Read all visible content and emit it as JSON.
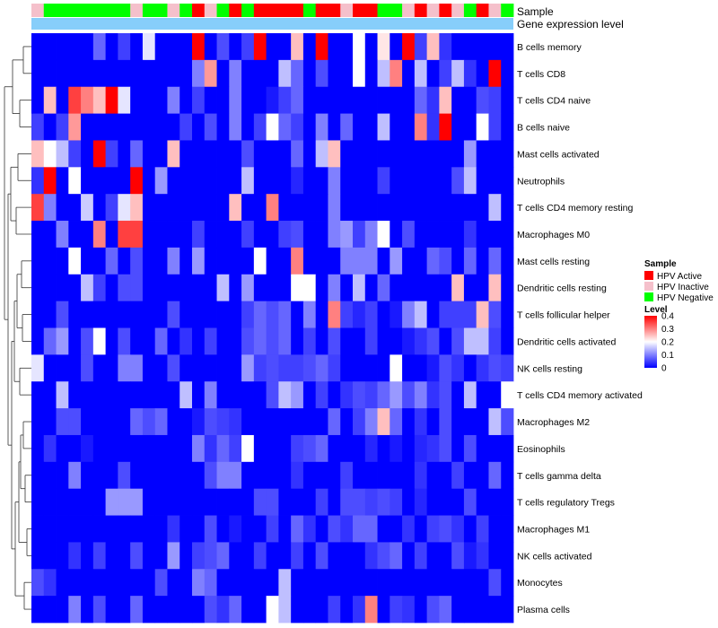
{
  "chart_data": {
    "type": "heatmap",
    "annotation_rows": [
      "Sample",
      "Gene expression level"
    ],
    "sample_groups": [
      "HPV Inactive",
      "HPV Negative",
      "HPV Negative",
      "HPV Negative",
      "HPV Negative",
      "HPV Negative",
      "HPV Negative",
      "HPV Negative",
      "HPV Inactive",
      "HPV Negative",
      "HPV Negative",
      "HPV Inactive",
      "HPV Negative",
      "HPV Active",
      "HPV Inactive",
      "HPV Negative",
      "HPV Active",
      "HPV Negative",
      "HPV Active",
      "HPV Active",
      "HPV Active",
      "HPV Active",
      "HPV Negative",
      "HPV Active",
      "HPV Active",
      "HPV Inactive",
      "HPV Active",
      "HPV Active",
      "HPV Negative",
      "HPV Negative",
      "HPV Inactive",
      "HPV Active",
      "HPV Inactive",
      "HPV Active",
      "HPV Inactive",
      "HPV Negative",
      "HPV Active",
      "HPV Inactive",
      "HPV Negative"
    ],
    "rows": [
      "B cells memory",
      "T cells CD8",
      "T cells CD4 naive",
      "B cells naive",
      "Mast cells activated",
      "Neutrophils",
      "T cells CD4 memory resting",
      "Macrophages M0",
      "Mast cells resting",
      "Dendritic cells resting",
      "T cells follicular helper",
      "Dendritic cells activated",
      "NK cells resting",
      "T cells CD4 memory activated",
      "Macrophages M2",
      "Eosinophils",
      "T cells gamma delta",
      "T cells regulatory  Tregs",
      "Macrophages M1",
      "NK cells activated",
      "Monocytes",
      "Plasma cells"
    ],
    "values": [
      [
        0,
        0,
        0,
        0,
        0,
        0.08,
        0,
        0.05,
        0,
        0.18,
        0,
        0,
        0,
        0.4,
        0,
        0.06,
        0,
        0.05,
        0.4,
        0,
        0,
        0.25,
        0,
        0.4,
        0,
        0,
        0.2,
        0,
        0.22,
        0,
        0.4,
        0.05,
        0.25,
        0.04,
        0,
        0,
        0,
        0,
        0
      ],
      [
        0,
        0,
        0,
        0,
        0,
        0,
        0,
        0,
        0,
        0,
        0,
        0,
        0,
        0.1,
        0.28,
        0,
        0.1,
        0,
        0,
        0,
        0.15,
        0.08,
        0,
        0.06,
        0,
        0,
        0.2,
        0,
        0.15,
        0.3,
        0,
        0.15,
        0,
        0.05,
        0.15,
        0.04,
        0,
        0.4,
        0
      ],
      [
        0,
        0.25,
        0,
        0.35,
        0.3,
        0.25,
        0.4,
        0.18,
        0,
        0,
        0,
        0.1,
        0,
        0.05,
        0,
        0,
        0.1,
        0,
        0,
        0.02,
        0.05,
        0.08,
        0,
        0,
        0,
        0,
        0,
        0,
        0,
        0,
        0,
        0.08,
        0.04,
        0.25,
        0,
        0,
        0.06,
        0.05,
        0
      ],
      [
        0.05,
        0,
        0.05,
        0.28,
        0,
        0,
        0,
        0,
        0,
        0,
        0,
        0,
        0.05,
        0,
        0.06,
        0,
        0.1,
        0,
        0.05,
        0.2,
        0.08,
        0.05,
        0,
        0.1,
        0,
        0.08,
        0,
        0,
        0.15,
        0,
        0,
        0.3,
        0.04,
        0.4,
        0,
        0,
        0.2,
        0.05,
        0
      ],
      [
        0.25,
        0.2,
        0.15,
        0.05,
        0,
        0.4,
        0.05,
        0,
        0.08,
        0,
        0,
        0.25,
        0,
        0,
        0,
        0,
        0,
        0.06,
        0,
        0,
        0,
        0.08,
        0,
        0.15,
        0.25,
        0,
        0,
        0,
        0,
        0,
        0,
        0,
        0,
        0,
        0,
        0.12,
        0,
        0,
        0
      ],
      [
        0.04,
        0.4,
        0,
        0.2,
        0,
        0,
        0,
        0,
        0.4,
        0,
        0.12,
        0,
        0,
        0,
        0,
        0,
        0,
        0.15,
        0,
        0,
        0,
        0.03,
        0,
        0,
        0.1,
        0,
        0,
        0,
        0.05,
        0,
        0,
        0,
        0,
        0,
        0.06,
        0.15,
        0,
        0,
        0
      ],
      [
        0.35,
        0.1,
        0,
        0,
        0.16,
        0,
        0.05,
        0.18,
        0.25,
        0,
        0,
        0,
        0,
        0,
        0,
        0,
        0.25,
        0,
        0,
        0.3,
        0,
        0,
        0,
        0,
        0.1,
        0,
        0,
        0,
        0,
        0,
        0,
        0,
        0,
        0,
        0,
        0,
        0,
        0.15,
        0
      ],
      [
        0,
        0,
        0.1,
        0,
        0,
        0.3,
        0,
        0.35,
        0.35,
        0,
        0,
        0,
        0,
        0.05,
        0,
        0,
        0,
        0.05,
        0,
        0,
        0.05,
        0.06,
        0,
        0,
        0.1,
        0.12,
        0.05,
        0.1,
        0.2,
        0,
        0.06,
        0,
        0,
        0,
        0,
        0.04,
        0,
        0,
        0
      ],
      [
        0,
        0,
        0,
        0.2,
        0,
        0,
        0.08,
        0,
        0.06,
        0,
        0,
        0.1,
        0,
        0.12,
        0,
        0,
        0,
        0,
        0.2,
        0,
        0,
        0.3,
        0,
        0,
        0,
        0.1,
        0.1,
        0.1,
        0,
        0.12,
        0,
        0,
        0.08,
        0.06,
        0,
        0.08,
        0,
        0.08,
        0
      ],
      [
        0,
        0,
        0,
        0,
        0.15,
        0.05,
        0,
        0.06,
        0.06,
        0,
        0,
        0,
        0,
        0,
        0,
        0.15,
        0,
        0.12,
        0,
        0,
        0,
        0.2,
        0.2,
        0,
        0.1,
        0,
        0.15,
        0,
        0.08,
        0,
        0,
        0,
        0,
        0,
        0.25,
        0,
        0,
        0.25,
        0
      ],
      [
        0,
        0,
        0.06,
        0,
        0,
        0,
        0,
        0,
        0,
        0,
        0,
        0.06,
        0,
        0,
        0,
        0,
        0,
        0.05,
        0.08,
        0.06,
        0.08,
        0,
        0.1,
        0,
        0.3,
        0.05,
        0.03,
        0.05,
        0,
        0.02,
        0.1,
        0.15,
        0,
        0.05,
        0.05,
        0.05,
        0.25,
        0.06,
        0
      ],
      [
        0,
        0.08,
        0.12,
        0,
        0.06,
        0.2,
        0,
        0.06,
        0,
        0,
        0.08,
        0,
        0.04,
        0,
        0.05,
        0,
        0,
        0.06,
        0.08,
        0.06,
        0.08,
        0,
        0.05,
        0,
        0.06,
        0,
        0,
        0.05,
        0,
        0,
        0.02,
        0.04,
        0.06,
        0,
        0.06,
        0.15,
        0.15,
        0.05,
        0
      ],
      [
        0.18,
        0,
        0,
        0,
        0.06,
        0,
        0,
        0.1,
        0.1,
        0,
        0,
        0.06,
        0,
        0,
        0,
        0,
        0,
        0.12,
        0.05,
        0.06,
        0.05,
        0.05,
        0.06,
        0.08,
        0.05,
        0,
        0,
        0,
        0,
        0.2,
        0,
        0,
        0.02,
        0.06,
        0.04,
        0,
        0.04,
        0.06,
        0.05
      ],
      [
        0,
        0,
        0.15,
        0,
        0,
        0,
        0,
        0,
        0,
        0,
        0,
        0,
        0.15,
        0,
        0.1,
        0,
        0,
        0,
        0,
        0.06,
        0.15,
        0.12,
        0,
        0.05,
        0,
        0.04,
        0.06,
        0.05,
        0.08,
        0.12,
        0.06,
        0.1,
        0.04,
        0.06,
        0,
        0.15,
        0,
        0,
        0.2
      ],
      [
        0,
        0,
        0.06,
        0.06,
        0,
        0,
        0,
        0,
        0.08,
        0.06,
        0.08,
        0,
        0,
        0.02,
        0.06,
        0.05,
        0.04,
        0,
        0,
        0,
        0,
        0,
        0,
        0,
        0.08,
        0,
        0.05,
        0.1,
        0.25,
        0.08,
        0,
        0.04,
        0,
        0.06,
        0,
        0,
        0,
        0.15,
        0.06
      ],
      [
        0,
        0.04,
        0,
        0,
        0.02,
        0,
        0,
        0,
        0,
        0,
        0,
        0,
        0,
        0.1,
        0.04,
        0.08,
        0.05,
        0.2,
        0,
        0,
        0,
        0.05,
        0.06,
        0.08,
        0,
        0,
        0,
        0.03,
        0,
        0.02,
        0,
        0.03,
        0.04,
        0.06,
        0,
        0.06,
        0,
        0,
        0
      ],
      [
        0,
        0,
        0,
        0.1,
        0,
        0,
        0,
        0.06,
        0,
        0,
        0,
        0,
        0,
        0,
        0.06,
        0.1,
        0.1,
        0,
        0,
        0,
        0,
        0.04,
        0,
        0,
        0,
        0.05,
        0,
        0,
        0,
        0,
        0,
        0.04,
        0,
        0,
        0.05,
        0,
        0,
        0.08,
        0
      ],
      [
        0,
        0,
        0,
        0,
        0,
        0,
        0.12,
        0.12,
        0.12,
        0,
        0,
        0,
        0,
        0,
        0,
        0,
        0,
        0,
        0.06,
        0.06,
        0,
        0,
        0,
        0.05,
        0,
        0.06,
        0.06,
        0.05,
        0.06,
        0.05,
        0,
        0.03,
        0,
        0,
        0,
        0.06,
        0,
        0,
        0
      ],
      [
        0,
        0,
        0,
        0,
        0,
        0,
        0,
        0,
        0,
        0,
        0,
        0.04,
        0,
        0,
        0.06,
        0,
        0.02,
        0,
        0,
        0.05,
        0,
        0.08,
        0.04,
        0,
        0.06,
        0.04,
        0.08,
        0.08,
        0,
        0,
        0.04,
        0,
        0.05,
        0.06,
        0.04,
        0,
        0.05,
        0,
        0
      ],
      [
        0,
        0,
        0,
        0.04,
        0,
        0.05,
        0,
        0,
        0.06,
        0,
        0,
        0.12,
        0,
        0.05,
        0.06,
        0.08,
        0,
        0,
        0.05,
        0,
        0,
        0.05,
        0,
        0.06,
        0,
        0,
        0,
        0.04,
        0.06,
        0.08,
        0,
        0.05,
        0,
        0,
        0.06,
        0.02,
        0.04,
        0,
        0
      ],
      [
        0.06,
        0.04,
        0,
        0,
        0,
        0,
        0,
        0,
        0,
        0,
        0.06,
        0,
        0,
        0.1,
        0.08,
        0,
        0,
        0,
        0,
        0,
        0.15,
        0,
        0,
        0,
        0,
        0,
        0,
        0,
        0,
        0,
        0,
        0,
        0,
        0,
        0,
        0,
        0,
        0.06,
        0
      ],
      [
        0,
        0,
        0,
        0.1,
        0,
        0.06,
        0,
        0,
        0.08,
        0,
        0,
        0,
        0,
        0,
        0.06,
        0.04,
        0.08,
        0,
        0,
        0.2,
        0.15,
        0,
        0,
        0,
        0.05,
        0,
        0.04,
        0.3,
        0,
        0.05,
        0.04,
        0,
        0.06,
        0.08,
        0,
        0,
        0,
        0,
        0
      ]
    ],
    "color_scale": {
      "min": 0,
      "max": 0.4,
      "low": "#0000ff",
      "mid": "#ffffff",
      "high": "#ff0000",
      "mid_value": 0.2
    },
    "legend_sample": {
      "title": "Sample",
      "entries": [
        {
          "label": "HPV Active",
          "color": "#ff0000"
        },
        {
          "label": "HPV Inactive",
          "color": "#f5c0cb"
        },
        {
          "label": "HPV Negative",
          "color": "#00ff00"
        }
      ]
    },
    "legend_level": {
      "title": "Level",
      "ticks": [
        "0.4",
        "0.3",
        "0.2",
        "0.1",
        "0"
      ],
      "tick_values": [
        0.4,
        0.3,
        0.2,
        0.1,
        0
      ]
    },
    "gene_expression_color": "#87cefa"
  }
}
